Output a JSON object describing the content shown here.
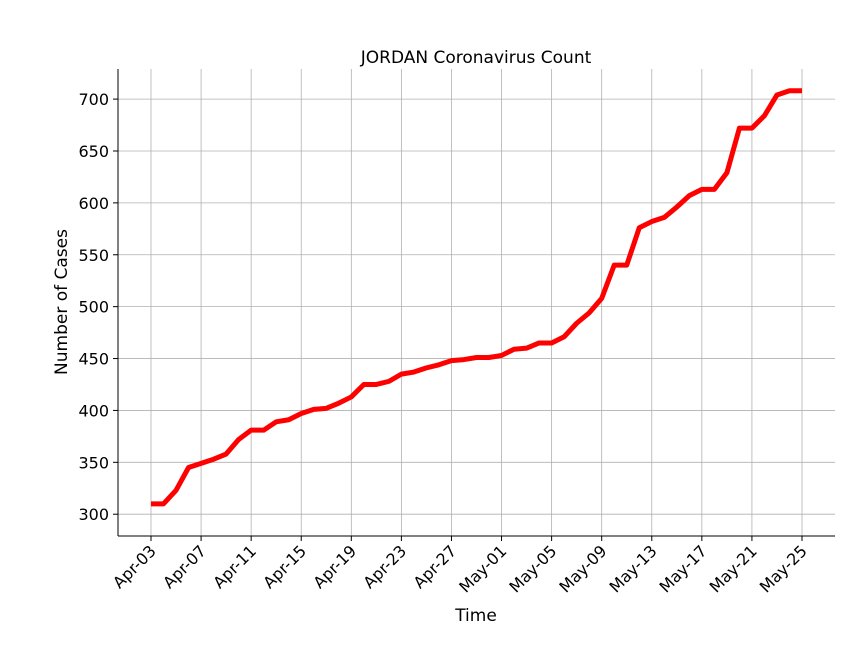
{
  "chart_data": {
    "type": "line",
    "title": "JORDAN Coronavirus Count",
    "xlabel": "Time",
    "ylabel": "Number of Cases",
    "x": [
      "Apr-03",
      "Apr-04",
      "Apr-05",
      "Apr-06",
      "Apr-07",
      "Apr-08",
      "Apr-09",
      "Apr-10",
      "Apr-11",
      "Apr-12",
      "Apr-13",
      "Apr-14",
      "Apr-15",
      "Apr-16",
      "Apr-17",
      "Apr-18",
      "Apr-19",
      "Apr-20",
      "Apr-21",
      "Apr-22",
      "Apr-23",
      "Apr-24",
      "Apr-25",
      "Apr-26",
      "Apr-27",
      "Apr-28",
      "Apr-29",
      "Apr-30",
      "May-01",
      "May-02",
      "May-03",
      "May-04",
      "May-05",
      "May-06",
      "May-07",
      "May-08",
      "May-09",
      "May-10",
      "May-11",
      "May-12",
      "May-13",
      "May-14",
      "May-15",
      "May-16",
      "May-17",
      "May-18",
      "May-19",
      "May-20",
      "May-21",
      "May-22",
      "May-23",
      "May-24",
      "May-25"
    ],
    "series": [
      {
        "color": "#ff0000",
        "values": [
          310,
          310,
          323,
          345,
          349,
          353,
          358,
          372,
          381,
          381,
          389,
          391,
          397,
          401,
          402,
          407,
          413,
          425,
          425,
          428,
          435,
          437,
          441,
          444,
          448,
          449,
          451,
          451,
          453,
          459,
          460,
          465,
          465,
          471,
          484,
          494,
          508,
          540,
          540,
          576,
          582,
          586,
          596,
          607,
          613,
          613,
          629,
          672,
          672,
          684,
          704,
          708,
          708
        ]
      }
    ],
    "xticks": [
      "Apr-03",
      "Apr-07",
      "Apr-11",
      "Apr-15",
      "Apr-19",
      "Apr-23",
      "Apr-27",
      "May-01",
      "May-05",
      "May-09",
      "May-13",
      "May-17",
      "May-21",
      "May-25"
    ],
    "ylim": [
      279,
      729
    ],
    "yticks": [
      300,
      350,
      400,
      450,
      500,
      550,
      600,
      650,
      700
    ],
    "grid": true
  }
}
